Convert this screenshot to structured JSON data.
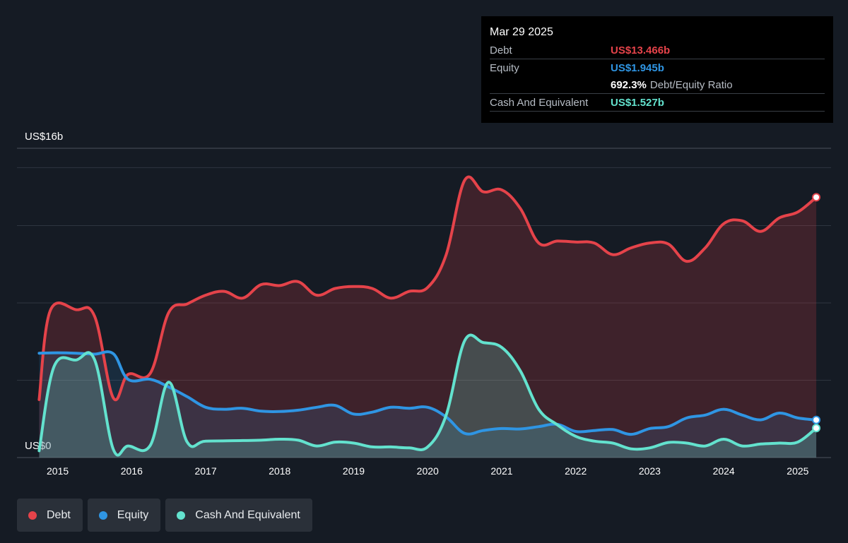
{
  "colors": {
    "background": "#151b24",
    "debt": "#e5434a",
    "equity": "#2f95e3",
    "cash": "#63e2ce"
  },
  "tooltip": {
    "date": "Mar 29 2025",
    "debt_label": "Debt",
    "debt_value": "US$13.466b",
    "equity_label": "Equity",
    "equity_value": "US$1.945b",
    "ratio_value": "692.3%",
    "ratio_label": "Debt/Equity Ratio",
    "cash_label": "Cash And Equivalent",
    "cash_value": "US$1.527b"
  },
  "legend": [
    {
      "label": "Debt",
      "color": "#e5434a"
    },
    {
      "label": "Equity",
      "color": "#2f95e3"
    },
    {
      "label": "Cash And Equivalent",
      "color": "#63e2ce"
    }
  ],
  "chart_data": {
    "type": "area",
    "y_top_label": "US$16b",
    "y_bottom_label": "US$0",
    "ylim": [
      0,
      16
    ],
    "y_unit": "US$ billions",
    "xlim": [
      2014.45,
      2025.45
    ],
    "x_ticks": [
      "2015",
      "2016",
      "2017",
      "2018",
      "2019",
      "2020",
      "2021",
      "2022",
      "2023",
      "2024",
      "2025"
    ],
    "grid": true,
    "legend_position": "bottom-left",
    "series": [
      {
        "name": "Debt",
        "color": "#e5434a",
        "points": [
          [
            2014.75,
            3.0
          ],
          [
            2014.9,
            7.6
          ],
          [
            2015.25,
            7.65
          ],
          [
            2015.5,
            7.3
          ],
          [
            2015.75,
            3.1
          ],
          [
            2015.95,
            4.3
          ],
          [
            2016.25,
            4.35
          ],
          [
            2016.5,
            7.5
          ],
          [
            2016.75,
            7.95
          ],
          [
            2017.0,
            8.4
          ],
          [
            2017.25,
            8.6
          ],
          [
            2017.5,
            8.25
          ],
          [
            2017.75,
            8.95
          ],
          [
            2018.0,
            8.9
          ],
          [
            2018.25,
            9.1
          ],
          [
            2018.5,
            8.4
          ],
          [
            2018.75,
            8.75
          ],
          [
            2019.0,
            8.85
          ],
          [
            2019.25,
            8.75
          ],
          [
            2019.5,
            8.25
          ],
          [
            2019.75,
            8.6
          ],
          [
            2020.0,
            8.8
          ],
          [
            2020.25,
            10.5
          ],
          [
            2020.5,
            14.35
          ],
          [
            2020.75,
            13.75
          ],
          [
            2021.0,
            13.85
          ],
          [
            2021.25,
            12.9
          ],
          [
            2021.5,
            11.1
          ],
          [
            2021.75,
            11.2
          ],
          [
            2022.0,
            11.15
          ],
          [
            2022.25,
            11.1
          ],
          [
            2022.5,
            10.5
          ],
          [
            2022.75,
            10.85
          ],
          [
            2023.0,
            11.1
          ],
          [
            2023.25,
            11.05
          ],
          [
            2023.5,
            10.15
          ],
          [
            2023.75,
            10.85
          ],
          [
            2024.0,
            12.1
          ],
          [
            2024.25,
            12.25
          ],
          [
            2024.5,
            11.7
          ],
          [
            2024.75,
            12.4
          ],
          [
            2025.0,
            12.7
          ],
          [
            2025.25,
            13.466
          ]
        ]
      },
      {
        "name": "Equity",
        "color": "#2f95e3",
        "points": [
          [
            2014.75,
            5.4
          ],
          [
            2015.0,
            5.42
          ],
          [
            2015.25,
            5.4
          ],
          [
            2015.5,
            5.35
          ],
          [
            2015.75,
            5.38
          ],
          [
            2015.95,
            4.05
          ],
          [
            2016.25,
            4.05
          ],
          [
            2016.5,
            3.65
          ],
          [
            2016.75,
            3.15
          ],
          [
            2017.0,
            2.6
          ],
          [
            2017.25,
            2.5
          ],
          [
            2017.5,
            2.55
          ],
          [
            2017.75,
            2.4
          ],
          [
            2018.0,
            2.38
          ],
          [
            2018.25,
            2.45
          ],
          [
            2018.5,
            2.6
          ],
          [
            2018.75,
            2.7
          ],
          [
            2019.0,
            2.25
          ],
          [
            2019.25,
            2.35
          ],
          [
            2019.5,
            2.6
          ],
          [
            2019.75,
            2.55
          ],
          [
            2020.0,
            2.6
          ],
          [
            2020.25,
            2.1
          ],
          [
            2020.5,
            1.25
          ],
          [
            2020.75,
            1.4
          ],
          [
            2021.0,
            1.5
          ],
          [
            2021.25,
            1.48
          ],
          [
            2021.5,
            1.6
          ],
          [
            2021.75,
            1.72
          ],
          [
            2022.0,
            1.35
          ],
          [
            2022.25,
            1.4
          ],
          [
            2022.5,
            1.45
          ],
          [
            2022.75,
            1.2
          ],
          [
            2023.0,
            1.5
          ],
          [
            2023.25,
            1.6
          ],
          [
            2023.5,
            2.05
          ],
          [
            2023.75,
            2.2
          ],
          [
            2024.0,
            2.5
          ],
          [
            2024.25,
            2.2
          ],
          [
            2024.5,
            1.95
          ],
          [
            2024.75,
            2.3
          ],
          [
            2025.0,
            2.05
          ],
          [
            2025.25,
            1.945
          ]
        ]
      },
      {
        "name": "Cash And Equivalent",
        "color": "#63e2ce",
        "points": [
          [
            2014.75,
            0.35
          ],
          [
            2014.95,
            4.7
          ],
          [
            2015.25,
            5.05
          ],
          [
            2015.5,
            5.05
          ],
          [
            2015.75,
            0.45
          ],
          [
            2015.95,
            0.6
          ],
          [
            2016.25,
            0.62
          ],
          [
            2016.5,
            3.9
          ],
          [
            2016.75,
            0.8
          ],
          [
            2017.0,
            0.85
          ],
          [
            2017.5,
            0.88
          ],
          [
            2017.75,
            0.9
          ],
          [
            2018.0,
            0.95
          ],
          [
            2018.25,
            0.9
          ],
          [
            2018.5,
            0.6
          ],
          [
            2018.75,
            0.8
          ],
          [
            2019.0,
            0.75
          ],
          [
            2019.25,
            0.55
          ],
          [
            2019.5,
            0.55
          ],
          [
            2019.75,
            0.5
          ],
          [
            2020.0,
            0.55
          ],
          [
            2020.25,
            2.2
          ],
          [
            2020.5,
            6.05
          ],
          [
            2020.75,
            5.95
          ],
          [
            2021.0,
            5.7
          ],
          [
            2021.25,
            4.5
          ],
          [
            2021.5,
            2.5
          ],
          [
            2021.75,
            1.7
          ],
          [
            2022.0,
            1.1
          ],
          [
            2022.25,
            0.85
          ],
          [
            2022.5,
            0.75
          ],
          [
            2022.75,
            0.45
          ],
          [
            2023.0,
            0.5
          ],
          [
            2023.25,
            0.78
          ],
          [
            2023.5,
            0.75
          ],
          [
            2023.75,
            0.6
          ],
          [
            2024.0,
            0.95
          ],
          [
            2024.25,
            0.6
          ],
          [
            2024.5,
            0.7
          ],
          [
            2024.75,
            0.75
          ],
          [
            2025.0,
            0.8
          ],
          [
            2025.25,
            1.527
          ]
        ]
      }
    ]
  }
}
